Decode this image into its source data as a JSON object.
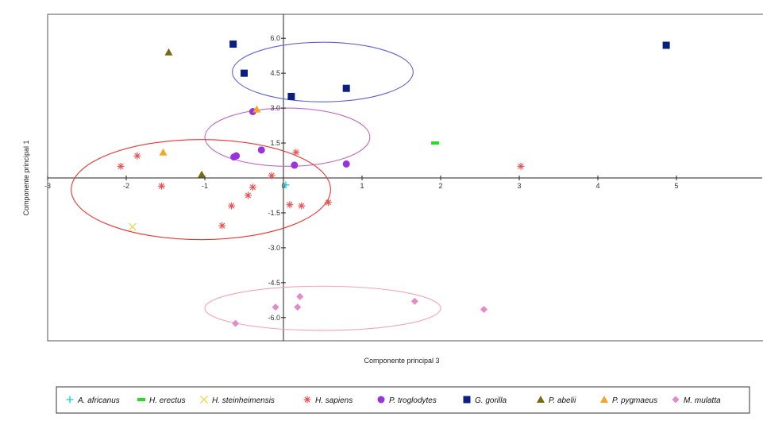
{
  "chart_data": {
    "type": "scatter",
    "title": "",
    "xlabel": "Componente principal 3",
    "ylabel": "Componente principal 1",
    "xlim": [
      -3,
      6
    ],
    "ylim": [
      -6.8,
      6.8
    ],
    "x_ticks": [
      -3,
      -2,
      -1,
      0,
      1,
      2,
      3,
      4,
      5
    ],
    "y_ticks": [
      -6.0,
      -4.5,
      -3.0,
      -1.5,
      0,
      1.5,
      3.0,
      4.5,
      6.0
    ],
    "x_tick_labels": [
      "-3",
      "-2",
      "-1",
      "0",
      "1",
      "2",
      "3",
      "4",
      "5"
    ],
    "y_tick_labels": [
      "-6.0",
      "-4.5",
      "-3.0",
      "-1.5",
      "0",
      "1.5",
      "3.0",
      "4.5",
      "6.0"
    ],
    "grid": false,
    "legend_position": "bottom",
    "series": [
      {
        "name": "A. africanus",
        "marker": "plus",
        "color": "#00d5e0",
        "points": [
          [
            0.03,
            -0.3
          ]
        ]
      },
      {
        "name": "H. erectus",
        "marker": "dash",
        "color": "#22dd22",
        "points": [
          [
            1.93,
            1.5
          ]
        ]
      },
      {
        "name": "H. steinheimensis",
        "marker": "x",
        "color": "#e8d84a",
        "points": [
          [
            -1.92,
            -2.1
          ]
        ]
      },
      {
        "name": "H. sapiens",
        "marker": "asterisk",
        "color": "#ee4a4a",
        "points": [
          [
            -2.07,
            0.5
          ],
          [
            -1.86,
            0.95
          ],
          [
            -1.55,
            -0.35
          ],
          [
            -0.78,
            -2.05
          ],
          [
            -0.66,
            -1.2
          ],
          [
            -0.39,
            -0.4
          ],
          [
            -0.45,
            -0.75
          ],
          [
            -0.15,
            0.1
          ],
          [
            0.16,
            1.1
          ],
          [
            0.23,
            -1.2
          ],
          [
            0.08,
            -1.15
          ],
          [
            0.57,
            -1.05
          ],
          [
            3.02,
            0.5
          ]
        ]
      },
      {
        "name": "P. troglodytes",
        "marker": "circle",
        "color": "#9a33dd",
        "points": [
          [
            -0.39,
            2.85
          ],
          [
            -0.6,
            0.95
          ],
          [
            -0.63,
            0.9
          ],
          [
            -0.28,
            1.2
          ],
          [
            0.14,
            0.55
          ],
          [
            0.8,
            0.6
          ]
        ]
      },
      {
        "name": "G. gorilla",
        "marker": "square",
        "color": "#0b1f80",
        "points": [
          [
            -0.64,
            5.75
          ],
          [
            -0.5,
            4.5
          ],
          [
            0.1,
            3.5
          ],
          [
            0.8,
            3.85
          ],
          [
            4.87,
            5.7
          ]
        ]
      },
      {
        "name": "P. abelii",
        "marker": "triangle",
        "color": "#7a6a12",
        "points": [
          [
            -1.46,
            5.4
          ],
          [
            -1.04,
            0.15
          ]
        ]
      },
      {
        "name": "P. pygmaeus",
        "marker": "triangle",
        "color": "#f5a623",
        "points": [
          [
            -0.34,
            2.95
          ],
          [
            -1.53,
            1.1
          ]
        ]
      },
      {
        "name": "M. mulatta",
        "marker": "diamond",
        "color": "#e48ac8",
        "points": [
          [
            -0.61,
            -6.25
          ],
          [
            -0.1,
            -5.55
          ],
          [
            0.18,
            -5.55
          ],
          [
            0.21,
            -5.1
          ],
          [
            1.67,
            -5.3
          ],
          [
            2.55,
            -5.65
          ]
        ]
      }
    ],
    "ellipses": [
      {
        "color": "#6060dd",
        "center": [
          0.5,
          4.55
        ],
        "radii": [
          1.15,
          1.28
        ]
      },
      {
        "color": "#c06ac0",
        "center": [
          0.05,
          1.75
        ],
        "radii": [
          1.05,
          1.25
        ]
      },
      {
        "color": "#ee3333",
        "center": [
          -1.05,
          -0.5
        ],
        "radii": [
          1.65,
          2.15
        ]
      },
      {
        "color": "#f2a4b4",
        "center": [
          0.5,
          -5.6
        ],
        "radii": [
          1.5,
          0.95
        ]
      }
    ]
  }
}
